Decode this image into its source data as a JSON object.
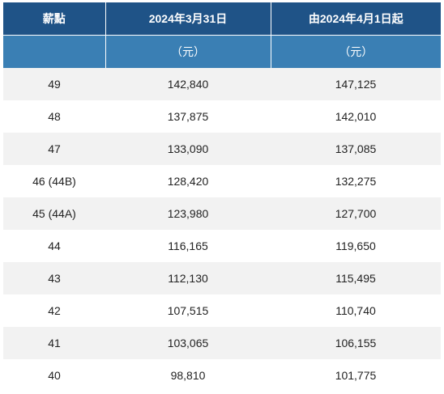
{
  "table": {
    "headers": {
      "col1": "薪點",
      "col2": "2024年3月31日",
      "col3": "由2024年4月1日起"
    },
    "units": {
      "col1": "",
      "col2": "（元）",
      "col3": "（元）"
    },
    "rows": [
      {
        "point": "49",
        "before": "142,840",
        "after": "147,125"
      },
      {
        "point": "48",
        "before": "137,875",
        "after": "142,010"
      },
      {
        "point": "47",
        "before": "133,090",
        "after": "137,085"
      },
      {
        "point": "46 (44B)",
        "before": "128,420",
        "after": "132,275"
      },
      {
        "point": "45 (44A)",
        "before": "123,980",
        "after": "127,700"
      },
      {
        "point": "44",
        "before": "116,165",
        "after": "119,650"
      },
      {
        "point": "43",
        "before": "112,130",
        "after": "115,495"
      },
      {
        "point": "42",
        "before": "107,515",
        "after": "110,740"
      },
      {
        "point": "41",
        "before": "103,065",
        "after": "106,155"
      },
      {
        "point": "40",
        "before": "98,810",
        "after": "101,775"
      }
    ]
  }
}
